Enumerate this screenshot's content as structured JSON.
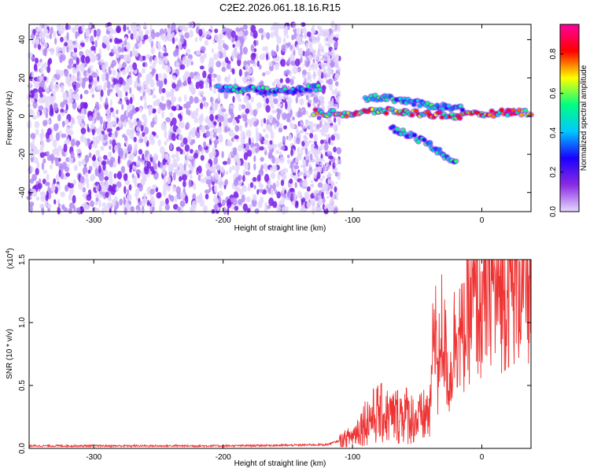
{
  "figure": {
    "title": "C2E2.2026.061.18.16.R15"
  },
  "chart_data": [
    {
      "type": "heatmap",
      "title": "C2E2.2026.061.18.16.R15",
      "xlabel": "Height of straight line (km)",
      "ylabel": "Frequency (Hz)",
      "xlim": [
        -350,
        38
      ],
      "ylim": [
        -50,
        48
      ],
      "xticks": [
        -300,
        -200,
        -100,
        0
      ],
      "yticks": [
        -40,
        -20,
        0,
        20,
        40
      ],
      "colorbar": {
        "label": "Normalized spectral amplitude",
        "range": [
          0.0,
          0.95
        ],
        "ticks": [
          0.0,
          0.2,
          0.4,
          0.6,
          0.8
        ],
        "colormap": [
          "#e6d9ff",
          "#8a2be2",
          "#1a00ff",
          "#00c8ff",
          "#00ff80",
          "#ffff00",
          "#ff0000",
          "#ff00a0"
        ]
      },
      "noise_region_km": [
        -350,
        -110
      ],
      "features": [
        {
          "name": "upper-branch",
          "points": [
            [
              -205,
              15
            ],
            [
              -180,
              14
            ],
            [
              -160,
              13
            ],
            [
              -140,
              14
            ],
            [
              -125,
              15
            ]
          ]
        },
        {
          "name": "main-branch",
          "points": [
            [
              -130,
              2
            ],
            [
              -100,
              1
            ],
            [
              -80,
              3
            ],
            [
              -60,
              2
            ],
            [
              -40,
              1
            ],
            [
              -20,
              0
            ],
            [
              0,
              1
            ],
            [
              20,
              2
            ],
            [
              38,
              2
            ]
          ]
        },
        {
          "name": "upper-splinter",
          "points": [
            [
              -90,
              9
            ],
            [
              -75,
              10
            ],
            [
              -60,
              8
            ],
            [
              -45,
              6
            ],
            [
              -30,
              5
            ],
            [
              -15,
              4
            ]
          ]
        },
        {
          "name": "lower-splinter",
          "points": [
            [
              -70,
              -6
            ],
            [
              -55,
              -10
            ],
            [
              -40,
              -15
            ],
            [
              -30,
              -20
            ],
            [
              -20,
              -24
            ]
          ]
        }
      ]
    },
    {
      "type": "line",
      "xlabel": "Height of straight line (km)",
      "ylabel": "SNR (10 * v/v)",
      "scale_label": "(x10",
      "scale_exp": "4",
      "scale_close": ")",
      "xlim": [
        -350,
        38
      ],
      "ylim": [
        0,
        1.5
      ],
      "xticks": [
        -300,
        -200,
        -100,
        0
      ],
      "yticks": [
        "0.0",
        "0.5",
        "1.0",
        "1.5"
      ],
      "ytick_values": [
        0,
        0.5,
        1.0,
        1.5
      ],
      "line_color": "#ee3333",
      "x": [
        -350,
        -300,
        -250,
        -200,
        -150,
        -120,
        -110,
        -100,
        -90,
        -80,
        -70,
        -60,
        -50,
        -45,
        -40,
        -36,
        -34,
        -32,
        -30,
        -25,
        -20,
        -15,
        -10,
        -5,
        0,
        5,
        8,
        10,
        15,
        20,
        25,
        30,
        38
      ],
      "values": [
        0.02,
        0.02,
        0.02,
        0.02,
        0.025,
        0.03,
        0.06,
        0.1,
        0.22,
        0.28,
        0.25,
        0.28,
        0.22,
        0.25,
        0.3,
        1.2,
        0.4,
        1.0,
        0.9,
        0.5,
        1.0,
        0.85,
        1.1,
        1.2,
        1.1,
        1.3,
        1.5,
        1.2,
        1.3,
        1.35,
        1.38,
        1.4,
        1.4
      ]
    }
  ]
}
